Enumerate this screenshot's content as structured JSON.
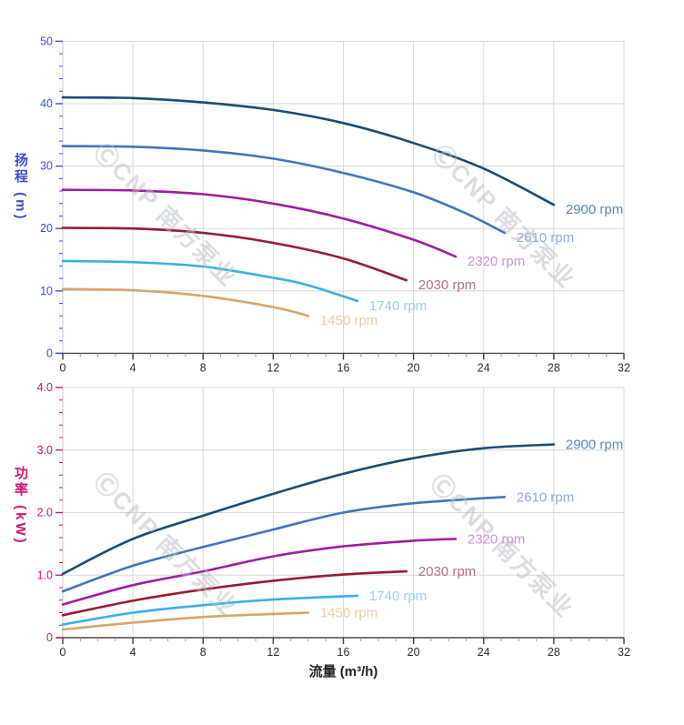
{
  "page": {
    "background": "#ffffff"
  },
  "watermark": {
    "text": "ⒸCNP 南方泵业",
    "color": "#b7bcc6"
  },
  "axes": {
    "x_tick_color": "#2b2b2b",
    "grid_color": "#d8d8d8",
    "x_axis_line_color": "#4a4a4a"
  },
  "chart_data": [
    {
      "type": "line",
      "title": "",
      "ylabel": "扬程 (m)",
      "xlabel": "流量 (m³/h)",
      "xlim": [
        0,
        32
      ],
      "ylim": [
        0,
        50
      ],
      "grid": true,
      "legend_position": "end-of-line-labels",
      "axis_color": "#3D4ECE",
      "x_major_ticks": [
        0,
        4,
        8,
        12,
        16,
        20,
        24,
        28,
        32
      ],
      "x_minor_step": 1,
      "y_major_ticks": [
        0,
        10,
        20,
        30,
        40,
        50
      ],
      "y_tick_labels": [
        "0",
        "10",
        "20",
        "30",
        "40",
        "50"
      ],
      "y_minor_step": 2,
      "series": [
        {
          "name": "2900 rpm",
          "color": "#1B4B75",
          "label_color": "#5E86AF",
          "points": [
            [
              0,
              41.0
            ],
            [
              4,
              40.9
            ],
            [
              8,
              40.2
            ],
            [
              12,
              39.0
            ],
            [
              16,
              36.9
            ],
            [
              20,
              33.7
            ],
            [
              24,
              29.6
            ],
            [
              28,
              23.8
            ]
          ]
        },
        {
          "name": "2610 rpm",
          "color": "#4374BC",
          "label_color": "#8BA9DA",
          "points": [
            [
              0,
              33.2
            ],
            [
              4,
              33.1
            ],
            [
              8,
              32.5
            ],
            [
              12,
              31.2
            ],
            [
              16,
              28.9
            ],
            [
              20,
              25.8
            ],
            [
              23,
              22.4
            ],
            [
              25.2,
              19.3
            ]
          ]
        },
        {
          "name": "2320 rpm",
          "color": "#A01BA5",
          "label_color": "#C693D2",
          "points": [
            [
              0,
              26.2
            ],
            [
              4,
              26.1
            ],
            [
              8,
              25.5
            ],
            [
              12,
              24.0
            ],
            [
              16,
              21.6
            ],
            [
              20,
              18.2
            ],
            [
              22.4,
              15.5
            ]
          ]
        },
        {
          "name": "2030 rpm",
          "color": "#981A36",
          "label_color": "#B27284",
          "points": [
            [
              0,
              20.1
            ],
            [
              4,
              20.0
            ],
            [
              8,
              19.3
            ],
            [
              12,
              17.7
            ],
            [
              16,
              15.2
            ],
            [
              19.6,
              11.7
            ]
          ]
        },
        {
          "name": "1740 rpm",
          "color": "#39AFE8",
          "label_color": "#93CFF3",
          "points": [
            [
              0,
              14.8
            ],
            [
              4,
              14.6
            ],
            [
              8,
              13.9
            ],
            [
              12,
              12.1
            ],
            [
              14,
              10.9
            ],
            [
              16.8,
              8.4
            ]
          ]
        },
        {
          "name": "1450 rpm",
          "color": "#D8A468",
          "label_color": "#E9CDA4",
          "points": [
            [
              0,
              10.3
            ],
            [
              4,
              10.1
            ],
            [
              8,
              9.2
            ],
            [
              12,
              7.4
            ],
            [
              14,
              6.0
            ]
          ]
        }
      ]
    },
    {
      "type": "line",
      "title": "",
      "ylabel": "功率 (kW)",
      "xlabel": "流量 (m³/h)",
      "xlim": [
        0,
        32
      ],
      "ylim": [
        0,
        4.0
      ],
      "grid": true,
      "legend_position": "end-of-line-labels",
      "axis_color": "#CE1572",
      "x_major_ticks": [
        0,
        4,
        8,
        12,
        16,
        20,
        24,
        28,
        32
      ],
      "x_minor_step": 1,
      "y_major_ticks": [
        0,
        1,
        2,
        3,
        4
      ],
      "y_tick_labels": [
        "0",
        "1.0",
        "2.0",
        "3.0",
        "4.0"
      ],
      "y_minor_step": 0.2,
      "series": [
        {
          "name": "2900 rpm",
          "color": "#1B4B75",
          "label_color": "#5E86AF",
          "points": [
            [
              0,
              1.02
            ],
            [
              4,
              1.58
            ],
            [
              8,
              1.95
            ],
            [
              12,
              2.3
            ],
            [
              16,
              2.62
            ],
            [
              20,
              2.87
            ],
            [
              24,
              3.03
            ],
            [
              28,
              3.09
            ]
          ]
        },
        {
          "name": "2610 rpm",
          "color": "#4374BC",
          "label_color": "#8BA9DA",
          "points": [
            [
              0,
              0.74
            ],
            [
              4,
              1.15
            ],
            [
              8,
              1.45
            ],
            [
              12,
              1.73
            ],
            [
              16,
              2.0
            ],
            [
              20,
              2.15
            ],
            [
              25.2,
              2.25
            ]
          ]
        },
        {
          "name": "2320 rpm",
          "color": "#A01BA5",
          "label_color": "#C693D2",
          "points": [
            [
              0,
              0.53
            ],
            [
              4,
              0.84
            ],
            [
              8,
              1.06
            ],
            [
              12,
              1.3
            ],
            [
              16,
              1.46
            ],
            [
              20,
              1.55
            ],
            [
              22.4,
              1.58
            ]
          ]
        },
        {
          "name": "2030 rpm",
          "color": "#981A36",
          "label_color": "#B27284",
          "points": [
            [
              0,
              0.36
            ],
            [
              4,
              0.59
            ],
            [
              8,
              0.77
            ],
            [
              12,
              0.91
            ],
            [
              16,
              1.01
            ],
            [
              19.6,
              1.06
            ]
          ]
        },
        {
          "name": "1740 rpm",
          "color": "#39AFE8",
          "label_color": "#93CFF3",
          "points": [
            [
              0,
              0.21
            ],
            [
              4,
              0.4
            ],
            [
              8,
              0.52
            ],
            [
              12,
              0.61
            ],
            [
              16.8,
              0.67
            ]
          ]
        },
        {
          "name": "1450 rpm",
          "color": "#D8A468",
          "label_color": "#E9CDA4",
          "points": [
            [
              0,
              0.13
            ],
            [
              4,
              0.24
            ],
            [
              8,
              0.33
            ],
            [
              12,
              0.38
            ],
            [
              14,
              0.4
            ]
          ]
        }
      ]
    }
  ]
}
